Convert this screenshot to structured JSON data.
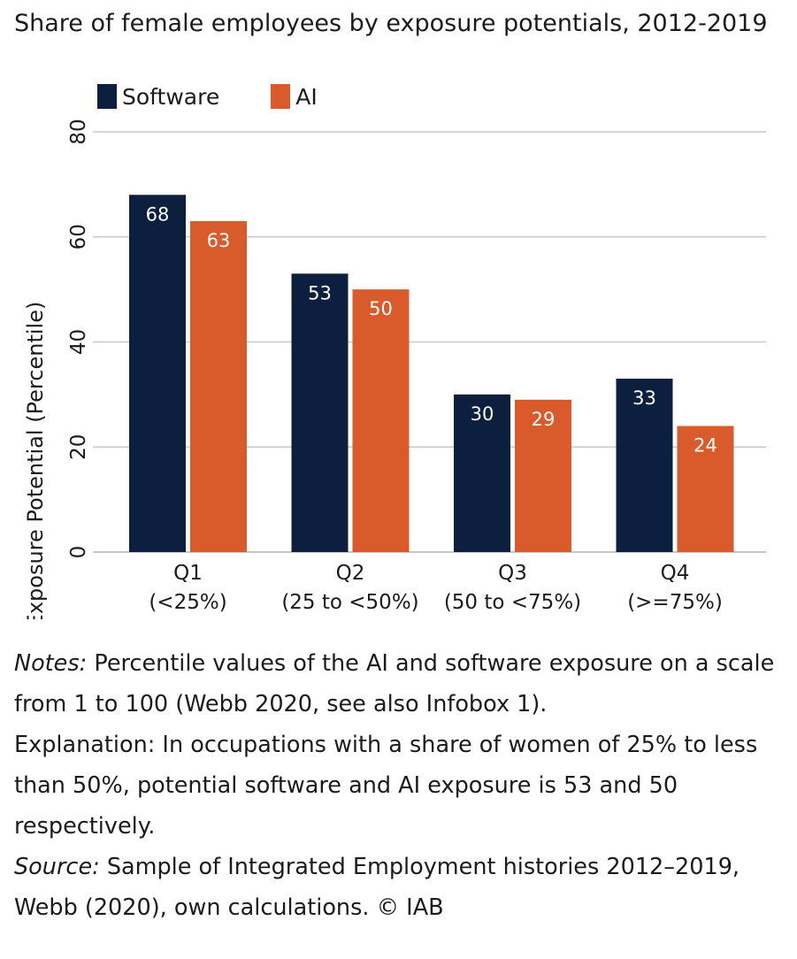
{
  "chart_data": {
    "type": "bar",
    "title": "Share of female employees by exposure potentials, 2012-2019",
    "categories": [
      {
        "name": "Q1",
        "sub": "(<25%)"
      },
      {
        "name": "Q2",
        "sub": "(25 to <50%)"
      },
      {
        "name": "Q3",
        "sub": "(50 to <75%)"
      },
      {
        "name": "Q4",
        "sub": "(>=75%)"
      }
    ],
    "series": [
      {
        "name": "Software",
        "color": "#0c1f3f",
        "values": [
          68,
          53,
          30,
          33
        ]
      },
      {
        "name": "AI",
        "color": "#d95b2b",
        "values": [
          63,
          50,
          29,
          24
        ]
      }
    ],
    "xlabel": "",
    "ylabel": "Exposure Potential (Percentile)",
    "ylim": [
      0,
      80
    ],
    "yticks": [
      "0",
      "20",
      "40",
      "60",
      "80"
    ],
    "grid": true,
    "legend_position": "top-left"
  },
  "notes": {
    "notes_label": "Notes:",
    "notes_text": " Percentile values of the AI and software exposure on a scale from 1 to 100 (Webb 2020, see also Infobox 1).",
    "explanation": "Explanation: In occupations with a share of women of 25% to less than 50%, potential software and AI exposure is 53 and 50 respectively.",
    "source_label": "Source:",
    "source_text": " Sample of Integrated Employment histories 2012–2019, Webb (2020), own calculations. © IAB"
  }
}
